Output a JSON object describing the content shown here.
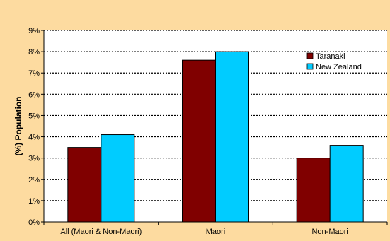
{
  "chart_data": {
    "type": "bar",
    "title": "",
    "xlabel": "",
    "ylabel": "(%) Population",
    "categories": [
      "All (Maori & Non-Maori)",
      "Maori",
      "Non-Maori"
    ],
    "series": [
      {
        "name": "Taranaki",
        "values": [
          3.5,
          7.6,
          3.0
        ],
        "color": "#800000"
      },
      {
        "name": "New Zealand",
        "values": [
          4.1,
          8.0,
          3.6
        ],
        "color": "#00CCFF"
      }
    ],
    "ylim": [
      0,
      9
    ],
    "yticks": [
      0,
      1,
      2,
      3,
      4,
      5,
      6,
      7,
      8,
      9
    ],
    "ytick_labels": [
      "0%",
      "1%",
      "2%",
      "3%",
      "4%",
      "5%",
      "6%",
      "7%",
      "8%",
      "9%"
    ],
    "grid": true,
    "legend_position": "top-right",
    "colors": {
      "background": "#FDDBA0",
      "plot_area": "#FFFFFF",
      "grid": "#000000"
    }
  }
}
